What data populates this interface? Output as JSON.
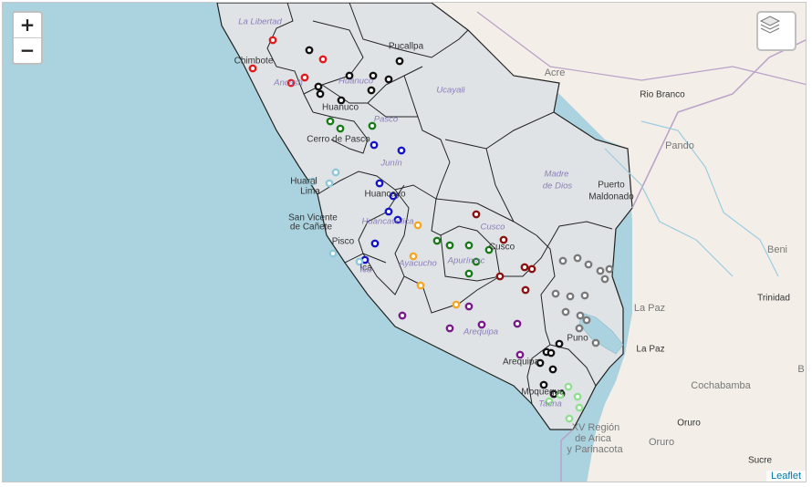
{
  "map": {
    "zoom_in_label": "+",
    "zoom_out_label": "−",
    "layers_icon": "layers-icon",
    "attribution": "Leaflet",
    "colors": {
      "water": "#aad3df",
      "land_peru": "#dfe3e6",
      "land_other": "#f3eee8",
      "border": "#222222",
      "intl_border": "#b9a1c8"
    }
  },
  "labels": {
    "cities": [
      {
        "name": "Chimbote"
      },
      {
        "name": "Huanuco"
      },
      {
        "name": "Cerro de Pasco"
      },
      {
        "name": "Huaral"
      },
      {
        "name": "Lima"
      },
      {
        "name": "San Vicente"
      },
      {
        "name": "de Cañete"
      },
      {
        "name": "Pisco"
      },
      {
        "name": "Ica"
      },
      {
        "name": "Huancayo"
      },
      {
        "name": "Cusco"
      },
      {
        "name": "Puno"
      },
      {
        "name": "Arequipa"
      },
      {
        "name": "Moquegua"
      },
      {
        "name": "Pucallpa"
      },
      {
        "name": "Rio Branco"
      },
      {
        "name": "Puerto"
      },
      {
        "name": "Maldonado"
      },
      {
        "name": "Trinidad"
      },
      {
        "name": "La Paz"
      },
      {
        "name": "Oruro"
      },
      {
        "name": "Sucre"
      }
    ],
    "regions": [
      {
        "name": "La Libertad"
      },
      {
        "name": "Ancash"
      },
      {
        "name": "Huánuco"
      },
      {
        "name": "Pasco"
      },
      {
        "name": "Junín"
      },
      {
        "name": "Huancavelica"
      },
      {
        "name": "Ayacucho"
      },
      {
        "name": "Apurímac"
      },
      {
        "name": "Cusco"
      },
      {
        "name": "Madre"
      },
      {
        "name": "de Dios"
      },
      {
        "name": "Ucayali"
      },
      {
        "name": "Arequipa"
      },
      {
        "name": "Tacna"
      },
      {
        "name": "Ica"
      }
    ],
    "foreign": [
      {
        "name": "Acre"
      },
      {
        "name": "Pando"
      },
      {
        "name": "Beni"
      },
      {
        "name": "La Paz"
      },
      {
        "name": "Cochabamba"
      },
      {
        "name": "Oruro"
      },
      {
        "name": "XV Región"
      },
      {
        "name": "de Arica"
      },
      {
        "name": "y Parinacota"
      },
      {
        "name": "B"
      }
    ]
  },
  "marker_groups": [
    {
      "region": "La Libertad / Ancash",
      "color": "#e31a1c",
      "count": 5
    },
    {
      "region": "Huánuco",
      "color": "#111111",
      "count": 9
    },
    {
      "region": "Pasco",
      "color": "#1a7a1a",
      "count": 3
    },
    {
      "region": "Junín",
      "color": "#1414c8",
      "count": 8
    },
    {
      "region": "Lima / Ica",
      "color": "#8fc8d8",
      "count": 5
    },
    {
      "region": "Ayacucho",
      "color": "#f5a623",
      "count": 4
    },
    {
      "region": "Apurímac",
      "color": "#1a7a1a",
      "count": 6
    },
    {
      "region": "Cusco",
      "color": "#8b1010",
      "count": 6
    },
    {
      "region": "Arequipa",
      "color": "#7a1a8a",
      "count": 6
    },
    {
      "region": "Puno",
      "color": "#7a7a7a",
      "count": 14
    },
    {
      "region": "Moquegua",
      "color": "#111111",
      "count": 8
    },
    {
      "region": "Tacna",
      "color": "#90e090",
      "count": 6
    }
  ]
}
